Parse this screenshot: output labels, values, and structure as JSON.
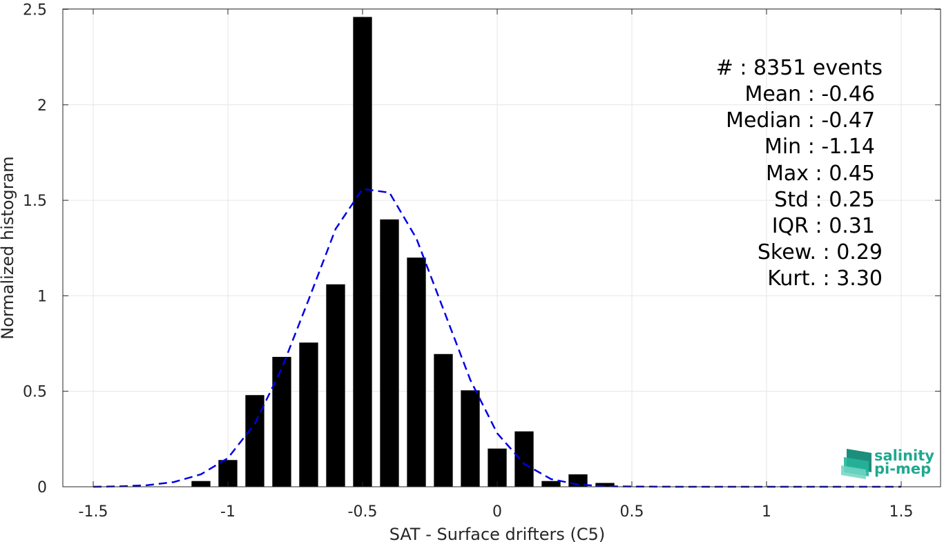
{
  "chart_data": {
    "type": "bar",
    "title": "",
    "xlabel": "SAT - Surface drifters (C5)",
    "ylabel": "Normalized histogram",
    "xlim": [
      -1.5,
      1.5
    ],
    "ylim": [
      0,
      2.5
    ],
    "xticks": [
      "-1.5",
      "-1",
      "-0.5",
      "0",
      "0.5",
      "1",
      "1.5"
    ],
    "xtick_values": [
      -1.5,
      -1,
      -0.5,
      0,
      0.5,
      1,
      1.5
    ],
    "yticks": [
      "0",
      "0.5",
      "1",
      "1.5",
      "2",
      "2.5"
    ],
    "ytick_values": [
      0,
      0.5,
      1,
      1.5,
      2,
      2.5
    ],
    "grid": true,
    "bar_width": 0.07,
    "bar_color": "#000000",
    "bins": [
      {
        "x": -1.1,
        "y": 0.03
      },
      {
        "x": -1.0,
        "y": 0.14
      },
      {
        "x": -0.9,
        "y": 0.48
      },
      {
        "x": -0.8,
        "y": 0.68
      },
      {
        "x": -0.7,
        "y": 0.755
      },
      {
        "x": -0.6,
        "y": 1.06
      },
      {
        "x": -0.5,
        "y": 2.46
      },
      {
        "x": -0.4,
        "y": 1.4
      },
      {
        "x": -0.3,
        "y": 1.2
      },
      {
        "x": -0.2,
        "y": 0.695
      },
      {
        "x": -0.1,
        "y": 0.505
      },
      {
        "x": 0.0,
        "y": 0.2
      },
      {
        "x": 0.1,
        "y": 0.29
      },
      {
        "x": 0.2,
        "y": 0.03
      },
      {
        "x": 0.3,
        "y": 0.065
      },
      {
        "x": 0.4,
        "y": 0.02
      }
    ],
    "fit_curve": {
      "style": "dashed",
      "color": "#0000e6",
      "points": [
        {
          "x": -1.5,
          "y": 0.0
        },
        {
          "x": -1.4,
          "y": 0.002
        },
        {
          "x": -1.3,
          "y": 0.008
        },
        {
          "x": -1.2,
          "y": 0.025
        },
        {
          "x": -1.1,
          "y": 0.065
        },
        {
          "x": -1.0,
          "y": 0.15
        },
        {
          "x": -0.9,
          "y": 0.33
        },
        {
          "x": -0.8,
          "y": 0.62
        },
        {
          "x": -0.7,
          "y": 0.98
        },
        {
          "x": -0.6,
          "y": 1.35
        },
        {
          "x": -0.5,
          "y": 1.56
        },
        {
          "x": -0.4,
          "y": 1.54
        },
        {
          "x": -0.3,
          "y": 1.3
        },
        {
          "x": -0.2,
          "y": 0.93
        },
        {
          "x": -0.1,
          "y": 0.56
        },
        {
          "x": 0.0,
          "y": 0.28
        },
        {
          "x": 0.1,
          "y": 0.12
        },
        {
          "x": 0.2,
          "y": 0.04
        },
        {
          "x": 0.3,
          "y": 0.012
        },
        {
          "x": 0.4,
          "y": 0.003
        },
        {
          "x": 0.5,
          "y": 0.001
        },
        {
          "x": 0.7,
          "y": 0.0
        },
        {
          "x": 1.0,
          "y": 0.0
        },
        {
          "x": 1.5,
          "y": 0.0
        }
      ]
    }
  },
  "stats": [
    "#  : 8351 events",
    "Mean : -0.46",
    "Median : -0.47",
    "Min : -1.14",
    "Max : 0.45",
    "Std : 0.25",
    "IQR : 0.31",
    "Skew. : 0.29",
    "Kurt. : 3.30"
  ],
  "logo": {
    "line1": "salinity",
    "line2": "pi-mep",
    "color": "#1fa88f"
  }
}
